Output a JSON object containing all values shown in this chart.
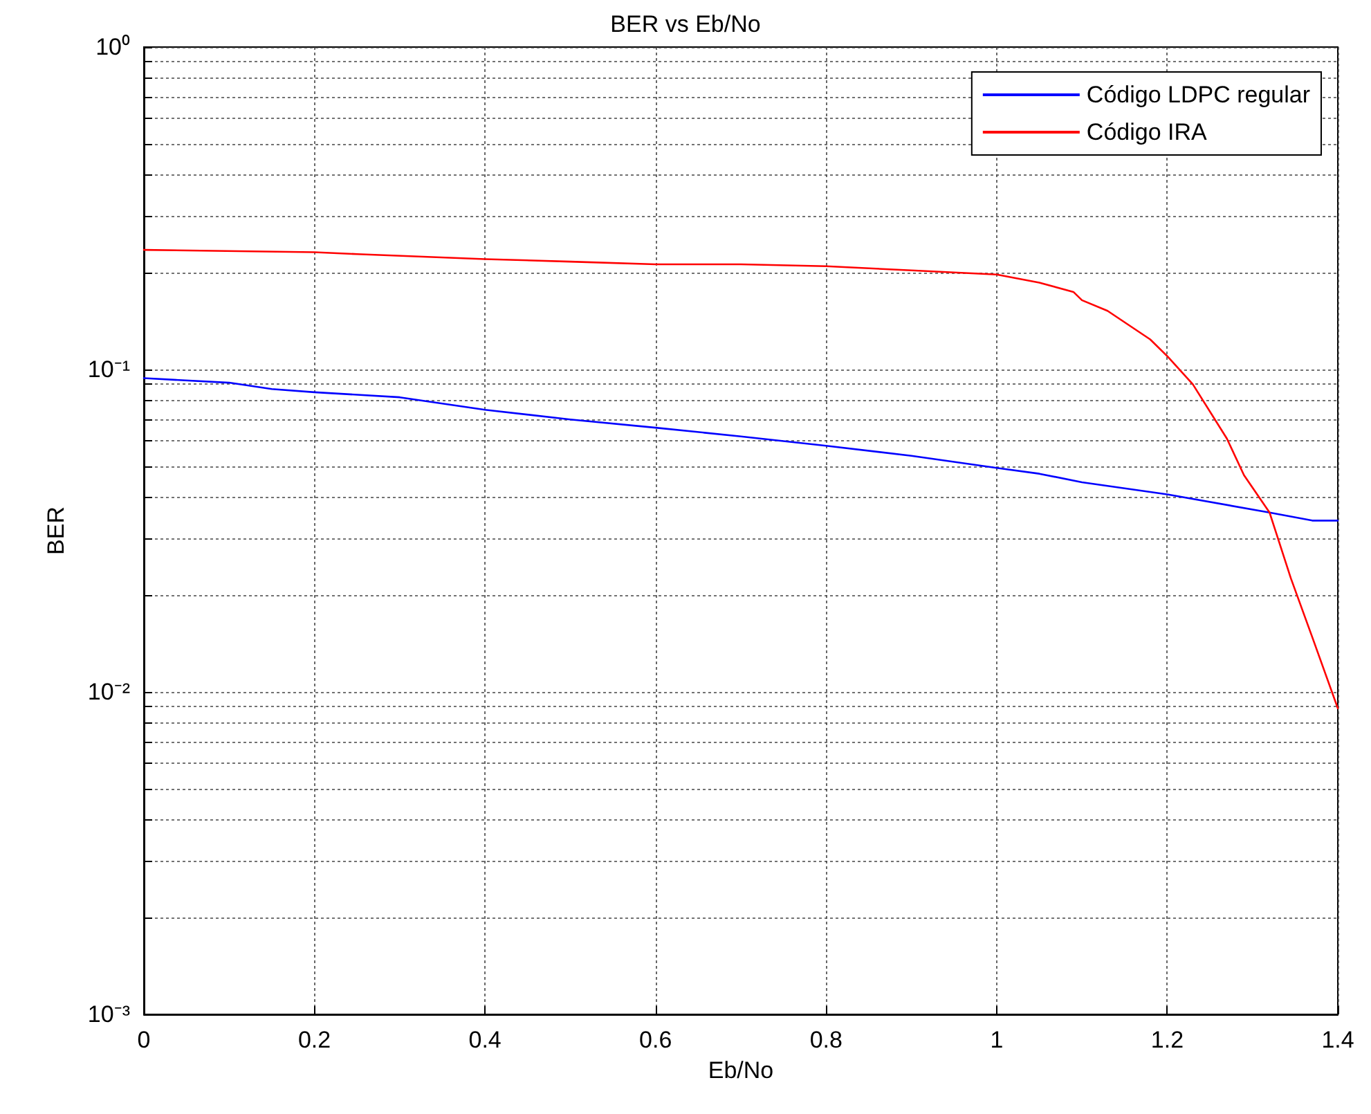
{
  "chart_data": {
    "type": "line",
    "title": "BER vs Eb/No",
    "xlabel": "Eb/No",
    "ylabel": "BER",
    "log": "y",
    "grid": true,
    "legend": "top right",
    "line_style": "solid",
    "marker": "none",
    "xlim": [
      0,
      1.4
    ],
    "xticks": [
      0,
      0.2,
      0.4,
      0.6,
      0.8,
      1,
      1.2,
      1.4
    ],
    "ylim": [
      0.001,
      1
    ],
    "yticks": [
      {
        "value": 0.001,
        "label": "10⁻³"
      },
      {
        "value": 0.002,
        "label": null
      },
      {
        "value": 0.003,
        "label": null
      },
      {
        "value": 0.004,
        "label": null
      },
      {
        "value": 0.005,
        "label": null
      },
      {
        "value": 0.006,
        "label": null
      },
      {
        "value": 0.007,
        "label": null
      },
      {
        "value": 0.008,
        "label": null
      },
      {
        "value": 0.009,
        "label": null
      },
      {
        "value": 0.01,
        "label": "10⁻²"
      },
      {
        "value": 0.02,
        "label": null
      },
      {
        "value": 0.03,
        "label": null
      },
      {
        "value": 0.04,
        "label": null
      },
      {
        "value": 0.05,
        "label": null
      },
      {
        "value": 0.06,
        "label": null
      },
      {
        "value": 0.07,
        "label": null
      },
      {
        "value": 0.08,
        "label": null
      },
      {
        "value": 0.09,
        "label": null
      },
      {
        "value": 0.1,
        "label": "10⁻¹"
      },
      {
        "value": 0.2,
        "label": null
      },
      {
        "value": 0.3,
        "label": null
      },
      {
        "value": 0.4,
        "label": null
      },
      {
        "value": 0.5,
        "label": null
      },
      {
        "value": 0.6,
        "label": null
      },
      {
        "value": 0.7,
        "label": null
      },
      {
        "value": 0.8,
        "label": null
      },
      {
        "value": 0.9,
        "label": null
      },
      {
        "value": 1,
        "label": "10⁰"
      }
    ],
    "series": [
      {
        "name": "Código LDPC regular",
        "color": "#0000ff",
        "x": [
          0,
          0.1,
          0.15,
          0.2,
          0.3,
          0.4,
          0.5,
          0.6,
          0.7,
          0.8,
          0.9,
          1.0,
          1.05,
          1.1,
          1.2,
          1.32,
          1.37,
          1.4
        ],
        "values": [
          0.094,
          0.091,
          0.087,
          0.085,
          0.082,
          0.075,
          0.07,
          0.066,
          0.062,
          0.058,
          0.054,
          0.0495,
          0.0475,
          0.0447,
          0.041,
          0.036,
          0.034,
          0.034
        ]
      },
      {
        "name": "Código IRA",
        "color": "#ff0000",
        "x": [
          0,
          0.2,
          0.25,
          0.4,
          0.5,
          0.6,
          0.7,
          0.8,
          0.9,
          1.0,
          1.05,
          1.09,
          1.1,
          1.13,
          1.18,
          1.2,
          1.23,
          1.27,
          1.29,
          1.32,
          1.345,
          1.37,
          1.4
        ],
        "values": [
          0.235,
          0.231,
          0.228,
          0.22,
          0.216,
          0.212,
          0.212,
          0.209,
          0.203,
          0.197,
          0.186,
          0.174,
          0.164,
          0.152,
          0.124,
          0.11,
          0.09,
          0.061,
          0.047,
          0.036,
          0.0225,
          0.0148,
          0.0089
        ]
      }
    ]
  }
}
